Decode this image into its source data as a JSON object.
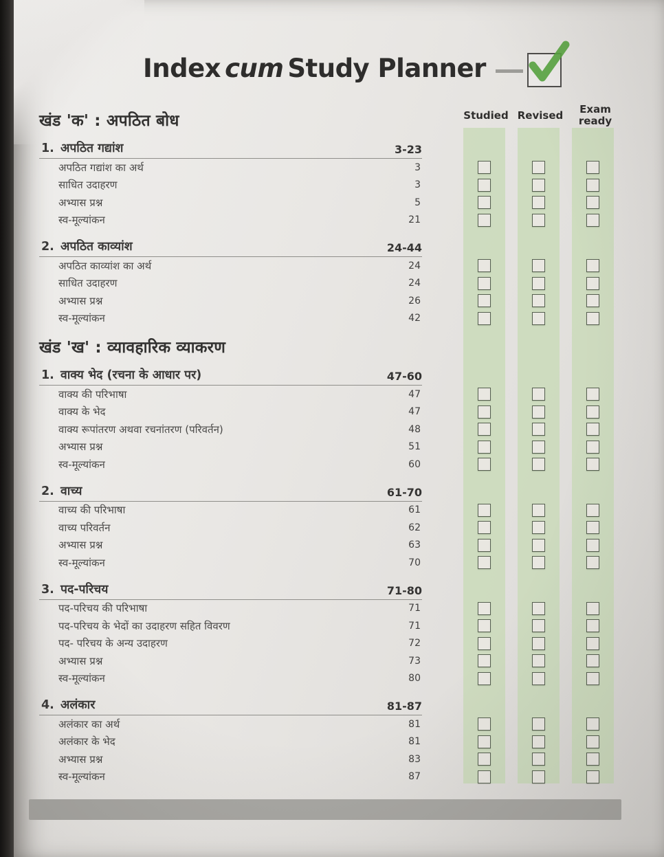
{
  "page": {
    "title": {
      "part1": "Index",
      "part2": "cum",
      "part3": "Study Planner"
    },
    "tracker_columns": [
      {
        "label": "Studied",
        "label2": ""
      },
      {
        "label": "Revised",
        "label2": ""
      },
      {
        "label": "Exam",
        "label2": "ready"
      }
    ],
    "colors": {
      "strip_green": "#cadbba",
      "check_green": "#57a33f",
      "footer_bar": "#a8a7a3",
      "text_dark": "#333231"
    },
    "sections": [
      {
        "heading": "खंड 'क' : अपठित बोध",
        "chapters": [
          {
            "number": "1.",
            "title": "अपठित गद्यांश",
            "pages": "3-23",
            "items": [
              {
                "label": "अपठित गद्यांश का अर्थ",
                "page": "3"
              },
              {
                "label": "साधित उदाहरण",
                "page": "3"
              },
              {
                "label": "अभ्यास प्रश्न",
                "page": "5"
              },
              {
                "label": "स्व-मूल्यांकन",
                "page": "21"
              }
            ]
          },
          {
            "number": "2.",
            "title": "अपठित काव्यांश",
            "pages": "24-44",
            "items": [
              {
                "label": "अपठित काव्यांश का अर्थ",
                "page": "24"
              },
              {
                "label": "साधित उदाहरण",
                "page": "24"
              },
              {
                "label": "अभ्यास प्रश्न",
                "page": "26"
              },
              {
                "label": "स्व-मूल्यांकन",
                "page": "42"
              }
            ]
          }
        ]
      },
      {
        "heading": "खंड 'ख' : व्यावहारिक व्याकरण",
        "chapters": [
          {
            "number": "1.",
            "title": "वाक्य भेद (रचना के आधार पर)",
            "pages": "47-60",
            "items": [
              {
                "label": "वाक्य की परिभाषा",
                "page": "47"
              },
              {
                "label": "वाक्य के भेद",
                "page": "47"
              },
              {
                "label": "वाक्य रूपांतरण अथवा रचनांतरण (परिवर्तन)",
                "page": "48"
              },
              {
                "label": "अभ्यास प्रश्न",
                "page": "51"
              },
              {
                "label": "स्व-मूल्यांकन",
                "page": "60"
              }
            ]
          },
          {
            "number": "2.",
            "title": "वाच्य",
            "pages": "61-70",
            "items": [
              {
                "label": "वाच्य की परिभाषा",
                "page": "61"
              },
              {
                "label": "वाच्य परिवर्तन",
                "page": "62"
              },
              {
                "label": "अभ्यास प्रश्न",
                "page": "63"
              },
              {
                "label": "स्व-मूल्यांकन",
                "page": "70"
              }
            ]
          },
          {
            "number": "3.",
            "title": "पद-परिचय",
            "pages": "71-80",
            "items": [
              {
                "label": "पद-परिचय की परिभाषा",
                "page": "71"
              },
              {
                "label": "पद-परिचय के भेदों का उदाहरण सहित विवरण",
                "page": "71"
              },
              {
                "label": "पद- परिचय के अन्य उदाहरण",
                "page": "72"
              },
              {
                "label": "अभ्यास प्रश्न",
                "page": "73"
              },
              {
                "label": "स्व-मूल्यांकन",
                "page": "80"
              }
            ]
          },
          {
            "number": "4.",
            "title": "अलंकार",
            "pages": "81-87",
            "items": [
              {
                "label": "अलंकार का अर्थ",
                "page": "81"
              },
              {
                "label": "अलंकार के भेद",
                "page": "81"
              },
              {
                "label": "अभ्यास प्रश्न",
                "page": "83"
              },
              {
                "label": "स्व-मूल्यांकन",
                "page": "87"
              }
            ]
          }
        ]
      }
    ]
  }
}
